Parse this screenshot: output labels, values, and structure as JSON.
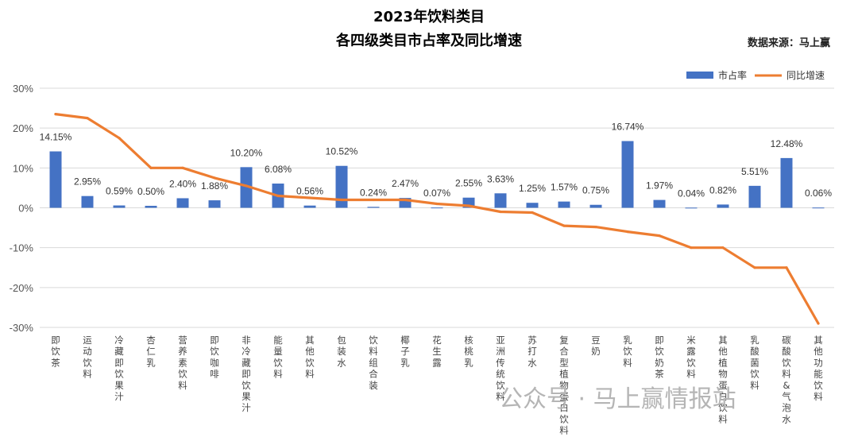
{
  "chart_data": {
    "type": "bar",
    "title": "2023年饮料类目",
    "subtitle": "各四级类目市占率及同比增速",
    "source": "数据来源：马上赢",
    "watermark": "公众号 · 马上赢情报站",
    "ylim": [
      -30,
      30
    ],
    "yticks": [
      "30%",
      "20%",
      "10%",
      "0%",
      "-10%",
      "-20%",
      "-30%"
    ],
    "legend_position": "top-right",
    "grid": true,
    "colors": {
      "bar": "#4472C4",
      "line": "#ED7D31"
    },
    "categories": [
      "即饮茶",
      "运动饮料",
      "冷藏即饮果汁",
      "杏仁乳",
      "营养素饮料",
      "即饮咖啡",
      "非冷藏即饮果汁",
      "能量饮料",
      "其他饮料",
      "包装水",
      "饮料组合装",
      "椰子乳",
      "花生露",
      "核桃乳",
      "亚洲传统饮料",
      "苏打水",
      "复合型植物蛋白饮料",
      "豆奶",
      "乳饮料",
      "即饮奶茶",
      "米露饮料",
      "其他植物蛋白饮料",
      "乳酸菌饮料",
      "碳酸饮料&气泡水",
      "其他功能饮料"
    ],
    "series": [
      {
        "name": "市占率",
        "type": "bar",
        "values": [
          14.15,
          2.95,
          0.59,
          0.5,
          2.4,
          1.88,
          10.2,
          6.08,
          0.56,
          10.52,
          0.24,
          2.47,
          0.07,
          2.55,
          3.63,
          1.25,
          1.57,
          0.75,
          16.74,
          1.97,
          0.04,
          0.82,
          5.51,
          12.48,
          0.06
        ],
        "labels": [
          "14.15%",
          "2.95%",
          "0.59%",
          "0.50%",
          "2.40%",
          "1.88%",
          "10.20%",
          "6.08%",
          "0.56%",
          "10.52%",
          "0.24%",
          "2.47%",
          "0.07%",
          "2.55%",
          "3.63%",
          "1.25%",
          "1.57%",
          "0.75%",
          "16.74%",
          "1.97%",
          "0.04%",
          "0.82%",
          "5.51%",
          "12.48%",
          "0.06%"
        ]
      },
      {
        "name": "同比增速",
        "type": "line",
        "values": [
          23.5,
          22.5,
          17.5,
          10,
          10,
          7.5,
          5.5,
          3,
          2.5,
          2,
          2,
          2,
          1,
          0.5,
          -1,
          -1.2,
          -4.5,
          -4.8,
          -6,
          -7,
          -10,
          -10,
          -15,
          -15,
          -29
        ]
      }
    ]
  }
}
